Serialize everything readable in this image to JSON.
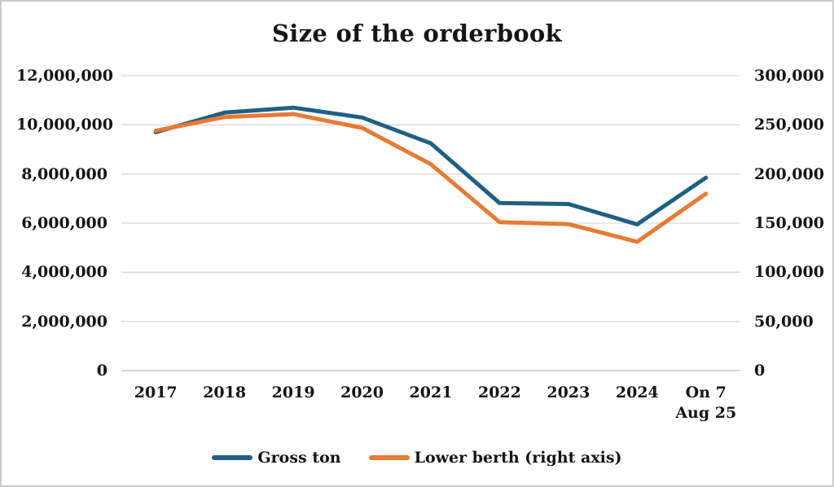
{
  "colors": {
    "gross_ton": "#1F6082",
    "lower_berth": "#E87A33",
    "gridline": "#D9D9D9",
    "axis_line": "#C0C0C0",
    "text": "#151515"
  },
  "chart_data": {
    "type": "line",
    "title": "Size of the orderbook",
    "categories": [
      "2017",
      "2018",
      "2019",
      "2020",
      "2021",
      "2022",
      "2023",
      "2024",
      "On 7\nAug 25"
    ],
    "series": [
      {
        "name": "Gross ton",
        "axis": "left",
        "color": "#1F6082",
        "values": [
          9700000,
          10500000,
          10700000,
          10300000,
          9250000,
          6820000,
          6780000,
          5950000,
          7850000
        ]
      },
      {
        "name": "Lower berth (right axis)",
        "axis": "right",
        "color": "#E87A33",
        "values": [
          244000,
          258000,
          261000,
          247000,
          210000,
          151000,
          149000,
          131000,
          180000
        ]
      }
    ],
    "left_axis": {
      "min": 0,
      "max": 12000000,
      "tick_labels": [
        "0",
        "2,000,000",
        "4,000,000",
        "6,000,000",
        "8,000,000",
        "10,000,000",
        "12,000,000"
      ]
    },
    "right_axis": {
      "min": 0,
      "max": 300000,
      "tick_labels": [
        "0",
        "50,000",
        "100,000",
        "150,000",
        "200,000",
        "250,000",
        "300,000"
      ]
    },
    "grid": true,
    "legend_position": "bottom"
  }
}
